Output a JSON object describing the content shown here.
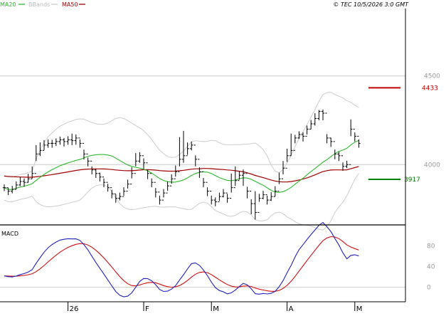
{
  "header": {
    "legend": [
      {
        "label": "MA20",
        "color": "#2eb82e"
      },
      {
        "label": "BBands",
        "color": "#bbbbbb"
      },
      {
        "label": "MA50",
        "color": "#a00000"
      }
    ],
    "copyright": "© TEC 10/5/2026 3:0 GMT"
  },
  "colors": {
    "price": "#000000",
    "ma20": "#2eb82e",
    "ma50": "#a00000",
    "bbands": "#cccccc",
    "macd": "#2020c0",
    "signal": "#d01010",
    "resistance": "#c00000",
    "support": "#008000",
    "grid": "#cccccc",
    "axis_text": "#999999"
  },
  "chart_data": [
    {
      "type": "ohlc",
      "panel": "price",
      "y_ticks": [
        4000,
        4500
      ],
      "ylim": [
        3660,
        4880
      ],
      "x_labels": [
        "26",
        "F",
        "M",
        "A",
        "M"
      ],
      "x_label_index": [
        16,
        35,
        52,
        71,
        88
      ],
      "n_bars": 90,
      "close": [
        3870,
        3850,
        3860,
        3885,
        3905,
        3900,
        3920,
        3950,
        4060,
        4080,
        4110,
        4120,
        4120,
        4130,
        4140,
        4130,
        4140,
        4135,
        4150,
        4120,
        4060,
        4020,
        3970,
        3950,
        3930,
        3900,
        3870,
        3835,
        3810,
        3820,
        3850,
        3890,
        3950,
        4020,
        4050,
        4010,
        3950,
        3900,
        3845,
        3800,
        3840,
        3880,
        3920,
        3960,
        4030,
        4050,
        4090,
        4110,
        4030,
        3960,
        3900,
        3850,
        3800,
        3790,
        3820,
        3840,
        3810,
        3870,
        3910,
        3940,
        3950,
        3850,
        3780,
        3730,
        3810,
        3830,
        3800,
        3820,
        3850,
        3920,
        3980,
        4050,
        4080,
        4150,
        4170,
        4160,
        4200,
        4230,
        4260,
        4300,
        4290,
        4150,
        4130,
        4060,
        4050,
        3990,
        4000,
        4200,
        4160,
        4120
      ],
      "high": [
        3888,
        3868,
        3880,
        3905,
        3930,
        3922,
        3948,
        3990,
        4110,
        4125,
        4138,
        4142,
        4140,
        4148,
        4158,
        4150,
        4160,
        4175,
        4170,
        4142,
        4085,
        4040,
        3990,
        3975,
        3955,
        3922,
        3892,
        3858,
        3832,
        3842,
        3872,
        3915,
        3985,
        4065,
        4070,
        4035,
        3972,
        3922,
        3868,
        3825,
        3862,
        3905,
        3945,
        3995,
        4155,
        4190,
        4125,
        4130,
        4052,
        3985,
        3925,
        3872,
        3825,
        3815,
        3842,
        3862,
        3835,
        3950,
        3990,
        3962,
        3972,
        3875,
        3805,
        3850,
        3835,
        3852,
        3825,
        3845,
        3878,
        3955,
        4020,
        4090,
        4175,
        4168,
        4188,
        4182,
        4220,
        4252,
        4290,
        4308,
        4310,
        4172,
        4152,
        4085,
        4072,
        4012,
        4022,
        4255,
        4182,
        4142
      ],
      "low": [
        3850,
        3828,
        3838,
        3862,
        3880,
        3875,
        3898,
        3922,
        4020,
        4048,
        4082,
        4095,
        4095,
        4105,
        4112,
        4102,
        4112,
        4110,
        4112,
        4095,
        4028,
        3990,
        3945,
        3925,
        3905,
        3872,
        3848,
        3810,
        3785,
        3798,
        3825,
        3865,
        3922,
        3990,
        4010,
        3975,
        3918,
        3872,
        3815,
        3775,
        3815,
        3852,
        3892,
        3932,
        3990,
        4010,
        4055,
        4080,
        3990,
        3925,
        3872,
        3822,
        3775,
        3765,
        3795,
        3815,
        3785,
        3842,
        3880,
        3915,
        3880,
        3810,
        3720,
        3690,
        3790,
        3805,
        3775,
        3795,
        3820,
        3890,
        3945,
        4015,
        4050,
        4120,
        4145,
        4130,
        4170,
        4200,
        4220,
        4250,
        4250,
        4120,
        4100,
        4030,
        4020,
        3965,
        3980,
        4160,
        4130,
        4095
      ]
    },
    {
      "type": "line",
      "panel": "macd",
      "y_ticks": [
        0,
        40,
        80
      ],
      "ylim": [
        -28,
        115
      ],
      "legend": "MACD",
      "series_colors": [
        "#2020c0",
        "#d01010"
      ]
    }
  ]
}
